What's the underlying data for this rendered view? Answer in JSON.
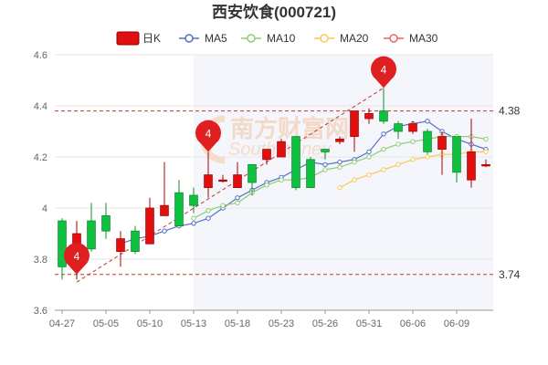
{
  "chart_data": {
    "type": "candlestick",
    "title": "西安饮食(000721)",
    "watermark": {
      "main": "南方财富网",
      "sub": "Southmoney"
    },
    "legend": [
      {
        "name": "日K",
        "color": "#e01010",
        "icon": "candle"
      },
      {
        "name": "MA5",
        "color": "#5470c6",
        "icon": "line"
      },
      {
        "name": "MA10",
        "color": "#91cc75",
        "icon": "line"
      },
      {
        "name": "MA20",
        "color": "#fac858",
        "icon": "line"
      },
      {
        "name": "MA30",
        "color": "#ee6666",
        "icon": "line"
      }
    ],
    "ylim": [
      3.6,
      4.6
    ],
    "yticks": [
      "3.6",
      "3.8",
      "4",
      "4.2",
      "4.4",
      "4.6"
    ],
    "x_tick_labels": [
      {
        "index": 0,
        "label": "04-27"
      },
      {
        "index": 3,
        "label": "05-05"
      },
      {
        "index": 6,
        "label": "05-10"
      },
      {
        "index": 9,
        "label": "05-13"
      },
      {
        "index": 12,
        "label": "05-18"
      },
      {
        "index": 15,
        "label": "05-23"
      },
      {
        "index": 18,
        "label": "05-26"
      },
      {
        "index": 21,
        "label": "05-31"
      },
      {
        "index": 24,
        "label": "06-06"
      },
      {
        "index": 27,
        "label": "06-09"
      }
    ],
    "candles": [
      {
        "o": 3.95,
        "c": 3.77,
        "h": 3.96,
        "l": 3.72
      },
      {
        "o": 3.86,
        "c": 3.9,
        "h": 3.95,
        "l": 3.72
      },
      {
        "o": 3.95,
        "c": 3.84,
        "h": 4.02,
        "l": 3.83
      },
      {
        "o": 3.97,
        "c": 3.91,
        "h": 4.02,
        "l": 3.88
      },
      {
        "o": 3.83,
        "c": 3.88,
        "h": 3.91,
        "l": 3.77
      },
      {
        "o": 3.91,
        "c": 3.83,
        "h": 3.93,
        "l": 3.82
      },
      {
        "o": 3.86,
        "c": 4.0,
        "h": 4.04,
        "l": 3.86
      },
      {
        "o": 3.97,
        "c": 4.01,
        "h": 4.18,
        "l": 3.97
      },
      {
        "o": 4.06,
        "c": 3.93,
        "h": 4.11,
        "l": 3.93
      },
      {
        "o": 4.05,
        "c": 4.01,
        "h": 4.08,
        "l": 3.98
      },
      {
        "o": 4.08,
        "c": 4.13,
        "h": 4.22,
        "l": 4.04
      },
      {
        "o": 4.11,
        "c": 4.11,
        "h": 4.13,
        "l": 4.1
      },
      {
        "o": 4.08,
        "c": 4.13,
        "h": 4.18,
        "l": 4.08
      },
      {
        "o": 4.17,
        "c": 4.1,
        "h": 4.17,
        "l": 4.05
      },
      {
        "o": 4.19,
        "c": 4.23,
        "h": 4.23,
        "l": 4.17
      },
      {
        "o": 4.2,
        "c": 4.26,
        "h": 4.27,
        "l": 4.2
      },
      {
        "o": 4.28,
        "c": 4.08,
        "h": 4.28,
        "l": 4.07
      },
      {
        "o": 4.19,
        "c": 4.08,
        "h": 4.2,
        "l": 4.08
      },
      {
        "o": 4.23,
        "c": 4.22,
        "h": 4.23,
        "l": 4.19
      },
      {
        "o": 4.26,
        "c": 4.27,
        "h": 4.28,
        "l": 4.25
      },
      {
        "o": 4.28,
        "c": 4.38,
        "h": 4.38,
        "l": 4.22
      },
      {
        "o": 4.35,
        "c": 4.37,
        "h": 4.39,
        "l": 4.33
      },
      {
        "o": 4.38,
        "c": 4.34,
        "h": 4.47,
        "l": 4.33
      },
      {
        "o": 4.33,
        "c": 4.3,
        "h": 4.34,
        "l": 4.27
      },
      {
        "o": 4.3,
        "c": 4.33,
        "h": 4.34,
        "l": 4.29
      },
      {
        "o": 4.3,
        "c": 4.22,
        "h": 4.31,
        "l": 4.21
      },
      {
        "o": 4.23,
        "c": 4.28,
        "h": 4.3,
        "l": 4.13
      },
      {
        "o": 4.28,
        "c": 4.14,
        "h": 4.28,
        "l": 4.1
      },
      {
        "o": 4.11,
        "c": 4.22,
        "h": 4.35,
        "l": 4.08
      },
      {
        "o": 4.17,
        "c": 4.17,
        "h": 4.19,
        "l": 4.16
      }
    ],
    "ma5": [
      null,
      null,
      null,
      null,
      3.86,
      3.88,
      3.89,
      3.91,
      3.93,
      3.94,
      3.96,
      4.0,
      4.04,
      4.07,
      4.1,
      4.12,
      4.15,
      4.18,
      4.17,
      4.18,
      4.19,
      4.22,
      4.29,
      4.32,
      4.33,
      4.34,
      4.3,
      4.27,
      4.25,
      4.23
    ],
    "ma10": [
      null,
      null,
      null,
      null,
      null,
      null,
      null,
      null,
      null,
      3.96,
      3.99,
      4.01,
      4.02,
      4.06,
      4.09,
      4.11,
      4.11,
      4.12,
      4.15,
      4.16,
      4.18,
      4.2,
      4.23,
      4.25,
      4.26,
      4.27,
      4.28,
      4.28,
      4.28,
      4.27
    ],
    "ma20": [
      null,
      null,
      null,
      null,
      null,
      null,
      null,
      null,
      null,
      null,
      null,
      null,
      null,
      null,
      null,
      null,
      null,
      null,
      null,
      4.08,
      4.11,
      4.13,
      4.15,
      4.17,
      4.19,
      4.2,
      4.21,
      4.21,
      4.22,
      4.22
    ],
    "ma30": [],
    "ref_lines": [
      {
        "value": 4.38,
        "label": "4.38"
      },
      {
        "value": 3.74,
        "label": "3.74"
      }
    ],
    "markers": [
      {
        "index": 1,
        "value": 3.74,
        "label": "4"
      },
      {
        "index": 10,
        "value": 4.22,
        "label": "4"
      },
      {
        "index": 22,
        "value": 4.47,
        "label": "4"
      }
    ],
    "trendline": {
      "from": {
        "index": 1,
        "value": 3.71
      },
      "to": {
        "index": 22,
        "value": 4.47
      }
    },
    "x_day_labels_hint": "",
    "grid": true,
    "legend_position": "top"
  }
}
